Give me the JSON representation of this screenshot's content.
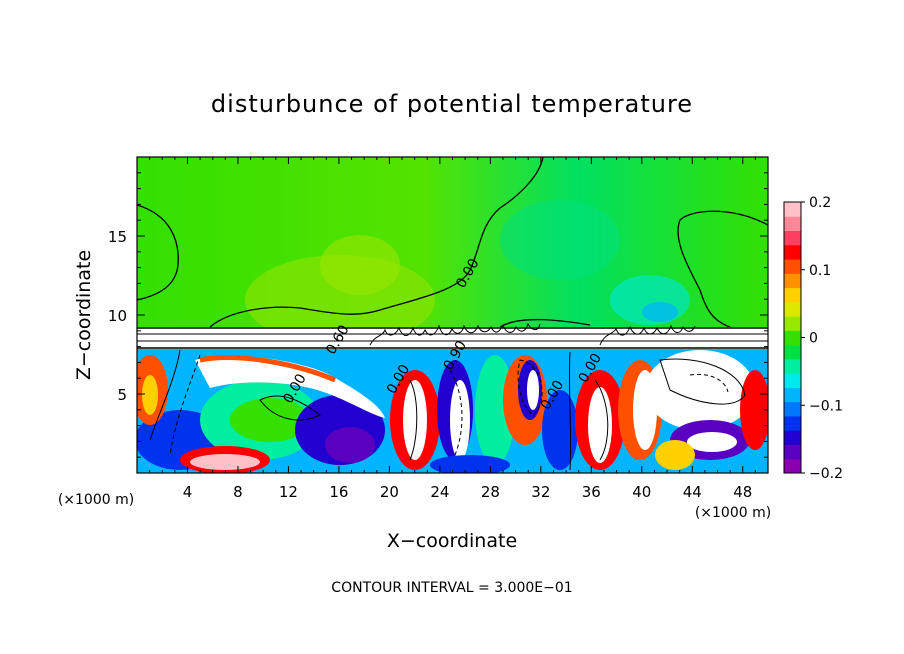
{
  "chart_data": {
    "type": "heatmap",
    "title": "disturbunce of potential temperature",
    "xlabel": "X−coordinate",
    "ylabel": "Z−coordinate",
    "x_unit": "(×1000 m)",
    "y_unit": "(×1000 m)",
    "xlim": [
      0,
      50
    ],
    "ylim": [
      0,
      20
    ],
    "x_ticks": [
      4,
      8,
      12,
      16,
      20,
      24,
      28,
      32,
      36,
      40,
      44,
      48
    ],
    "y_ticks": [
      5,
      10,
      15
    ],
    "contour_interval_text": "CONTOUR INTERVAL = 3.000E−01",
    "contour_labels": [
      {
        "text": "0.00",
        "x": 26.5,
        "y": 12.5
      },
      {
        "text": "0.60",
        "x": 16.2,
        "y": 8.3
      },
      {
        "text": "0.00",
        "x": 12.8,
        "y": 5.2
      },
      {
        "text": "0.00",
        "x": 21.0,
        "y": 5.8
      },
      {
        "text": "0.90",
        "x": 25.5,
        "y": 7.3
      },
      {
        "text": "0.00",
        "x": 33.2,
        "y": 4.8
      },
      {
        "text": "0.00",
        "x": 36.2,
        "y": 6.5
      }
    ],
    "colorbar": {
      "ticks": [
        {
          "value": 0.2,
          "label": "0.2"
        },
        {
          "value": 0.1,
          "label": "0.1"
        },
        {
          "value": 0.0,
          "label": "0"
        },
        {
          "value": -0.1,
          "label": "−0.1"
        },
        {
          "value": -0.2,
          "label": "−0.2"
        }
      ],
      "range": [
        -0.2,
        0.2
      ],
      "colors": [
        "#8a00b0",
        "#5a00c0",
        "#2200d0",
        "#0033ee",
        "#0077ff",
        "#00b4ff",
        "#00eaee",
        "#00eea0",
        "#00e040",
        "#33e000",
        "#99e600",
        "#dde800",
        "#ffd000",
        "#ff9000",
        "#ff5000",
        "#ff0000",
        "#ff4060",
        "#ff8898",
        "#ffc0c8"
      ]
    }
  }
}
